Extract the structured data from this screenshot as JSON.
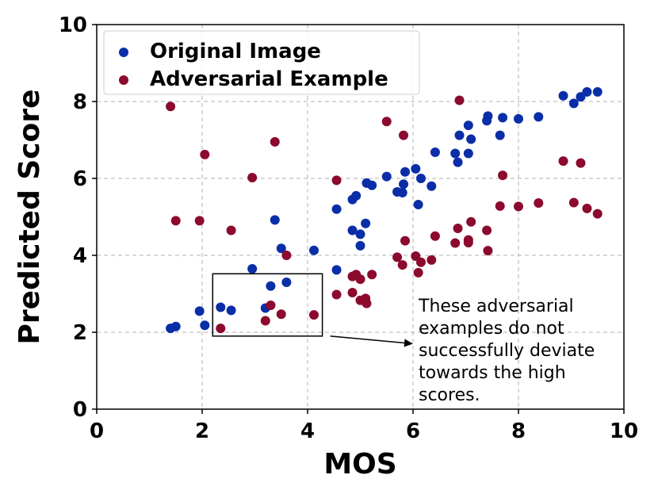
{
  "chart_data": {
    "type": "scatter",
    "xlabel": "MOS",
    "ylabel": "Predicted Score",
    "xlim": [
      0,
      10
    ],
    "ylim": [
      0,
      10
    ],
    "xticks": [
      "0",
      "2",
      "4",
      "6",
      "8",
      "10"
    ],
    "yticks": [
      "0",
      "2",
      "4",
      "6",
      "8",
      "10"
    ],
    "grid": true,
    "legend_position": "top-left",
    "series": [
      {
        "name": "Original Image",
        "color": "#0a2ea8",
        "points": [
          [
            1.4,
            2.1
          ],
          [
            1.5,
            2.15
          ],
          [
            1.95,
            2.55
          ],
          [
            2.05,
            2.18
          ],
          [
            2.35,
            2.65
          ],
          [
            2.55,
            2.57
          ],
          [
            2.95,
            3.65
          ],
          [
            3.2,
            2.63
          ],
          [
            3.3,
            3.2
          ],
          [
            3.38,
            4.92
          ],
          [
            3.5,
            4.18
          ],
          [
            3.6,
            3.3
          ],
          [
            4.12,
            4.13
          ],
          [
            4.55,
            3.62
          ],
          [
            4.55,
            5.2
          ],
          [
            4.85,
            4.65
          ],
          [
            4.85,
            5.45
          ],
          [
            4.92,
            5.55
          ],
          [
            5.0,
            4.55
          ],
          [
            5.0,
            4.25
          ],
          [
            5.1,
            4.83
          ],
          [
            5.12,
            5.88
          ],
          [
            5.22,
            5.82
          ],
          [
            5.5,
            6.05
          ],
          [
            5.7,
            5.65
          ],
          [
            5.8,
            5.63
          ],
          [
            5.82,
            5.85
          ],
          [
            5.85,
            6.17
          ],
          [
            6.05,
            6.25
          ],
          [
            6.1,
            5.32
          ],
          [
            6.15,
            6.0
          ],
          [
            6.35,
            5.8
          ],
          [
            6.42,
            6.68
          ],
          [
            6.8,
            6.65
          ],
          [
            6.85,
            6.42
          ],
          [
            6.88,
            7.12
          ],
          [
            7.05,
            6.65
          ],
          [
            7.05,
            7.38
          ],
          [
            7.1,
            7.02
          ],
          [
            7.4,
            7.5
          ],
          [
            7.42,
            7.62
          ],
          [
            7.65,
            7.12
          ],
          [
            7.7,
            7.58
          ],
          [
            8.0,
            7.55
          ],
          [
            8.38,
            7.6
          ],
          [
            8.85,
            8.15
          ],
          [
            9.05,
            7.95
          ],
          [
            9.18,
            8.12
          ],
          [
            9.3,
            8.25
          ],
          [
            9.5,
            8.25
          ]
        ]
      },
      {
        "name": "Adversarial Example",
        "color": "#8c0a2e",
        "points": [
          [
            1.4,
            7.87
          ],
          [
            1.5,
            4.9
          ],
          [
            1.95,
            4.9
          ],
          [
            2.05,
            6.62
          ],
          [
            2.35,
            2.1
          ],
          [
            2.55,
            4.65
          ],
          [
            2.95,
            6.02
          ],
          [
            3.2,
            2.3
          ],
          [
            3.3,
            2.7
          ],
          [
            3.38,
            6.95
          ],
          [
            3.5,
            2.47
          ],
          [
            3.6,
            4.0
          ],
          [
            4.12,
            2.45
          ],
          [
            4.55,
            5.95
          ],
          [
            4.55,
            2.98
          ],
          [
            4.85,
            3.03
          ],
          [
            4.85,
            3.45
          ],
          [
            4.92,
            3.5
          ],
          [
            5.0,
            3.38
          ],
          [
            5.0,
            2.83
          ],
          [
            5.1,
            2.88
          ],
          [
            5.12,
            2.75
          ],
          [
            5.22,
            3.5
          ],
          [
            5.5,
            7.48
          ],
          [
            5.7,
            3.95
          ],
          [
            5.8,
            3.75
          ],
          [
            5.82,
            7.12
          ],
          [
            5.85,
            4.38
          ],
          [
            6.05,
            3.98
          ],
          [
            6.1,
            3.55
          ],
          [
            6.15,
            3.82
          ],
          [
            6.35,
            3.88
          ],
          [
            6.42,
            4.5
          ],
          [
            6.8,
            4.32
          ],
          [
            6.85,
            4.7
          ],
          [
            6.88,
            8.03
          ],
          [
            7.05,
            4.33
          ],
          [
            7.05,
            4.4
          ],
          [
            7.1,
            4.87
          ],
          [
            7.4,
            4.65
          ],
          [
            7.42,
            4.12
          ],
          [
            7.65,
            5.28
          ],
          [
            7.7,
            6.08
          ],
          [
            8.0,
            5.27
          ],
          [
            8.38,
            5.36
          ],
          [
            8.85,
            6.45
          ],
          [
            9.05,
            5.37
          ],
          [
            9.18,
            6.4
          ],
          [
            9.3,
            5.22
          ],
          [
            9.5,
            5.08
          ]
        ]
      }
    ],
    "annotation": {
      "lines": [
        "These adversarial",
        "examples do not",
        "successfully deviate",
        "towards the high",
        "scores."
      ],
      "box": {
        "x": [
          2.2,
          4.28
        ],
        "y": [
          1.9,
          3.52
        ]
      },
      "arrow_from": [
        4.28,
        1.9
      ],
      "arrow_to": [
        6.0,
        1.7
      ]
    }
  }
}
